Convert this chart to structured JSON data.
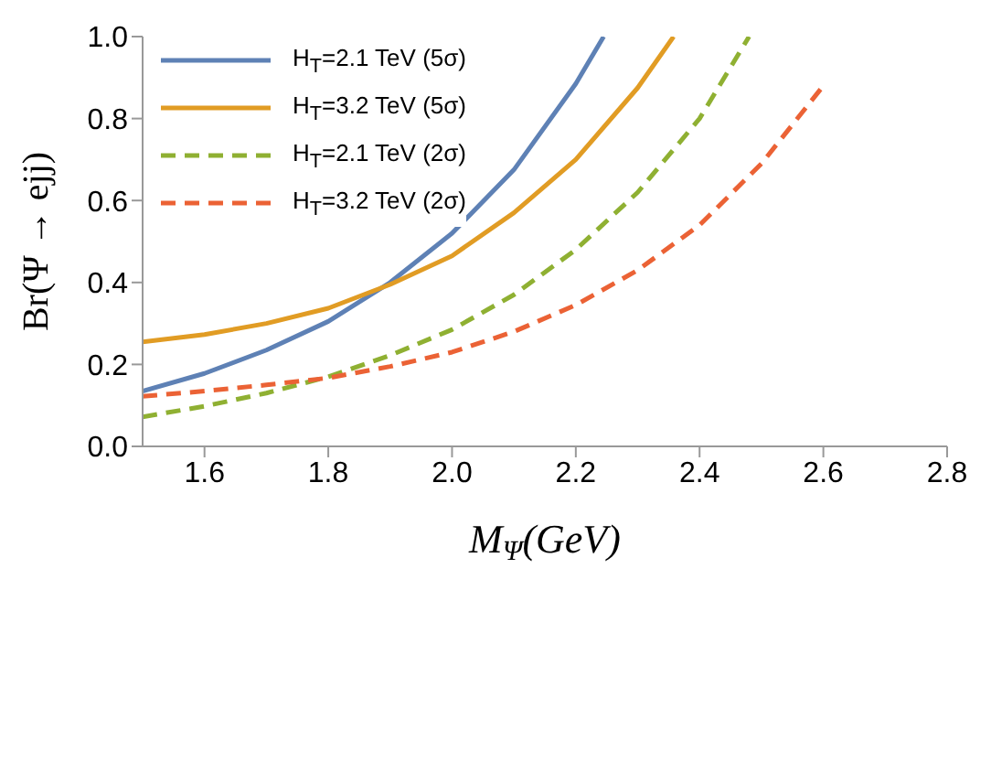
{
  "chart_data": {
    "type": "line",
    "xlabel": "M$_{Ψ}$(GeV)",
    "ylabel": "Br(Ψ → ejj)",
    "xlim": [
      1.5,
      2.8
    ],
    "ylim": [
      0,
      1
    ],
    "xticks": [
      1.6,
      1.8,
      {
        "value": 2,
        "label": "2.0"
      },
      2.2,
      2.4,
      2.6,
      2.8
    ],
    "yticks": [
      {
        "value": 0,
        "label": "0.0"
      },
      0.2,
      0.4,
      0.6,
      0.8,
      {
        "value": 1,
        "label": "1.0"
      }
    ],
    "grid": false,
    "legend": "top left",
    "marker": "none",
    "series": [
      {
        "name": "H$_{T}$=2.1 TeV (5σ)",
        "color": "#5e81b5",
        "line_style": "solid",
        "x": [
          1.5,
          1.6,
          1.7,
          1.8,
          1.9,
          2.0,
          2.1,
          2.2,
          2.245
        ],
        "values": [
          0.135,
          0.178,
          0.235,
          0.305,
          0.4,
          0.52,
          0.675,
          0.885,
          1.0
        ]
      },
      {
        "name": "H$_{T}$=3.2 TeV (5σ)",
        "color": "#e19c24",
        "line_style": "solid",
        "x": [
          1.5,
          1.6,
          1.7,
          1.8,
          1.9,
          2.0,
          2.1,
          2.2,
          2.3,
          2.358
        ],
        "values": [
          0.255,
          0.273,
          0.3,
          0.337,
          0.395,
          0.465,
          0.57,
          0.7,
          0.875,
          1.0
        ]
      },
      {
        "name": "H$_{T}$=2.1 TeV (2σ)",
        "color": "#8fb032",
        "line_style": "dashed",
        "x": [
          1.5,
          1.6,
          1.7,
          1.8,
          1.9,
          2.0,
          2.1,
          2.2,
          2.3,
          2.4,
          2.48
        ],
        "values": [
          0.072,
          0.098,
          0.13,
          0.17,
          0.222,
          0.285,
          0.37,
          0.48,
          0.62,
          0.8,
          1.0
        ]
      },
      {
        "name": "H$_{T}$=3.2 TeV (2σ)",
        "color": "#eb6235",
        "line_style": "dashed",
        "x": [
          1.5,
          1.6,
          1.7,
          1.8,
          1.9,
          2.0,
          2.1,
          2.2,
          2.3,
          2.4,
          2.5,
          2.6
        ],
        "values": [
          0.122,
          0.135,
          0.15,
          0.167,
          0.195,
          0.23,
          0.28,
          0.345,
          0.43,
          0.54,
          0.69,
          0.88
        ]
      }
    ]
  }
}
